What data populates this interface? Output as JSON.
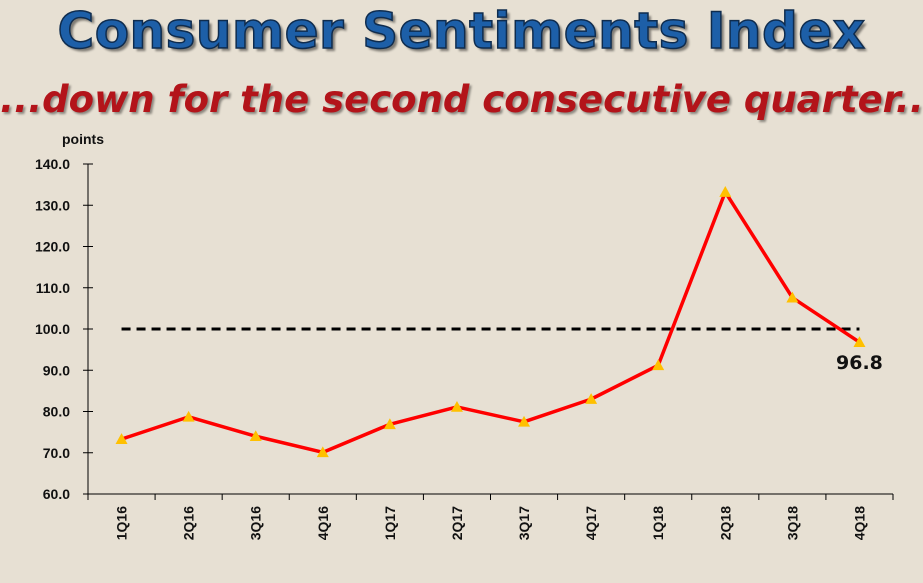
{
  "title": "Consumer Sentiments Index",
  "subtitle": "...down for the second consecutive quarter...",
  "chart_data": {
    "type": "line",
    "ylabel": "points",
    "ylim": [
      60,
      140
    ],
    "yticks": [
      "60.0",
      "70.0",
      "80.0",
      "90.0",
      "100.0",
      "110.0",
      "120.0",
      "130.0",
      "140.0"
    ],
    "categories": [
      "1Q16",
      "2Q16",
      "3Q16",
      "4Q16",
      "1Q17",
      "2Q17",
      "3Q17",
      "4Q17",
      "1Q18",
      "2Q18",
      "3Q18",
      "4Q18"
    ],
    "series": [
      {
        "values": [
          73.3,
          78.7,
          74.0,
          70.1,
          76.9,
          81.1,
          77.5,
          83.0,
          91.2,
          133.2,
          107.6,
          96.8
        ],
        "color": "#ff0000",
        "marker": "triangle",
        "marker_color": "#ffc000"
      }
    ],
    "reference_line": {
      "value": 100,
      "style": "dashed",
      "color": "#000000"
    },
    "data_labels": [
      {
        "index": 11,
        "text": "96.8"
      }
    ],
    "grid": false
  }
}
